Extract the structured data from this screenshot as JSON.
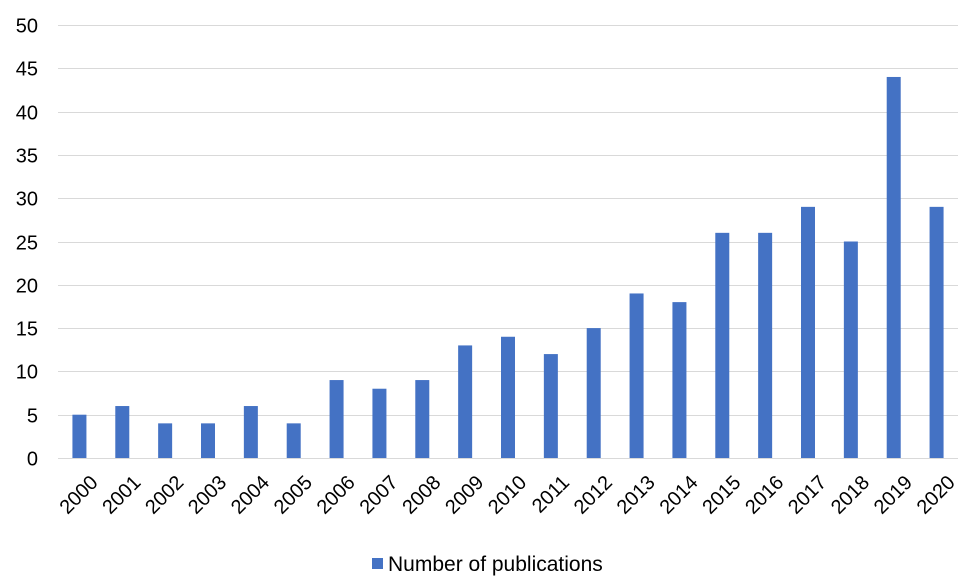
{
  "chart_data": {
    "type": "bar",
    "title": "",
    "xlabel": "",
    "ylabel": "",
    "categories": [
      "2000",
      "2001",
      "2002",
      "2003",
      "2004",
      "2005",
      "2006",
      "2007",
      "2008",
      "2009",
      "2010",
      "2011",
      "2012",
      "2013",
      "2014",
      "2015",
      "2016",
      "2017",
      "2018",
      "2019",
      "2020"
    ],
    "series": [
      {
        "name": "Number of publications",
        "color": "#4472c4",
        "values": [
          5,
          6,
          4,
          4,
          6,
          4,
          9,
          8,
          9,
          13,
          14,
          12,
          15,
          19,
          18,
          26,
          26,
          29,
          25,
          44,
          29
        ]
      }
    ],
    "ylim": [
      0,
      50
    ],
    "yticks": [
      0,
      5,
      10,
      15,
      20,
      25,
      30,
      35,
      40,
      45,
      50
    ],
    "grid": true,
    "legend_position": "bottom",
    "x_tick_rotation": "-45"
  }
}
